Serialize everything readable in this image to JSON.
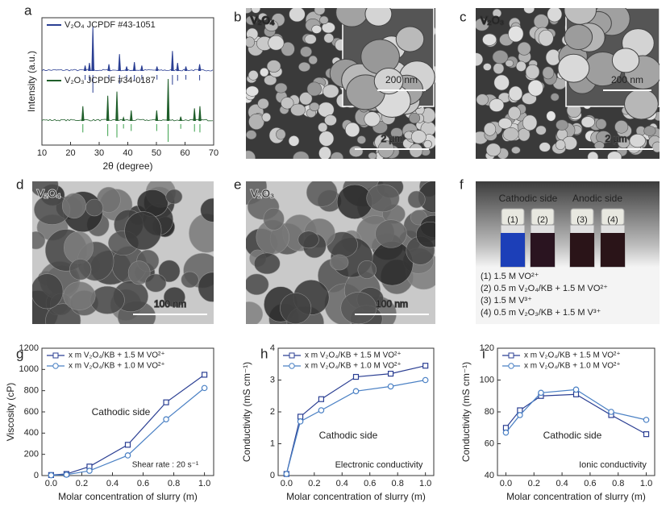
{
  "chart_data": [
    {
      "type": "xrd",
      "label": "a",
      "xlabel": "2θ (degree)",
      "ylabel": "Intensity (a.u.)",
      "xlim": [
        10,
        70
      ],
      "xticks": [
        10,
        20,
        30,
        40,
        50,
        60,
        70
      ],
      "series": [
        {
          "name": "V₂O₄ JCPDF #43-1051",
          "color": "#2b3f93",
          "x": [
            25.1,
            26.6,
            27.8,
            33.4,
            37.1,
            39.6,
            42.3,
            44.9,
            50.2,
            55.6,
            57.4,
            60.3,
            65.1
          ],
          "values": [
            12,
            18,
            100,
            15,
            38,
            10,
            20,
            12,
            10,
            45,
            18,
            10,
            15
          ]
        },
        {
          "name": "V₂O₃ JCPDF #34-0187",
          "color": "#1f5e2a",
          "x": [
            24.3,
            33.0,
            36.2,
            38.5,
            41.2,
            50.1,
            54.1,
            58.5,
            63.3,
            65.2
          ],
          "values": [
            35,
            60,
            70,
            8,
            25,
            25,
            100,
            10,
            30,
            35
          ]
        }
      ]
    },
    {
      "type": "line",
      "label": "g",
      "xlabel": "Molar concentration of slurry (m)",
      "ylabel": "Viscosity (cP)",
      "x": [
        0,
        0.1,
        0.25,
        0.5,
        0.75,
        1.0
      ],
      "xlim": [
        -0.06,
        1.06
      ],
      "xticks": [
        {
          "value": 0,
          "label": "0.0"
        },
        0.2,
        0.4,
        0.6,
        0.8,
        {
          "value": 1,
          "label": "1.0"
        }
      ],
      "ylim": [
        0,
        1200
      ],
      "yticks": [
        0,
        200,
        400,
        600,
        800,
        1000,
        1200
      ],
      "series": [
        {
          "name": "x m V₂O₄/KB + 1.5 M VO²⁺",
          "color": "#2b3f93",
          "marker": "square",
          "values": [
            5,
            15,
            85,
            290,
            690,
            950
          ]
        },
        {
          "name": "x m V₂O₄/KB + 1.0 M VO²⁺",
          "color": "#4a80c4",
          "marker": "circle",
          "values": [
            3,
            8,
            45,
            190,
            530,
            825
          ]
        }
      ],
      "annotations": [
        "Cathodic side",
        "Shear rate : 20 s⁻¹"
      ]
    },
    {
      "type": "line",
      "label": "h",
      "xlabel": "Molar concentration of slurry (m)",
      "ylabel": "Conductivity (mS cm⁻¹)",
      "x": [
        0,
        0.1,
        0.25,
        0.5,
        0.75,
        1.0
      ],
      "xlim": [
        -0.06,
        1.06
      ],
      "xticks": [
        {
          "value": 0,
          "label": "0.0"
        },
        0.2,
        0.4,
        0.6,
        0.8,
        {
          "value": 1,
          "label": "1.0"
        }
      ],
      "ylim": [
        0,
        4
      ],
      "yticks": [
        0,
        1,
        2,
        3,
        4
      ],
      "series": [
        {
          "name": "x m V₂O₄/KB + 1.5 M VO²⁺",
          "color": "#2b3f93",
          "marker": "square",
          "values": [
            0.05,
            1.85,
            2.4,
            3.1,
            3.2,
            3.45
          ]
        },
        {
          "name": "x m V₂O₄/KB + 1.0 M VO²⁺",
          "color": "#4a80c4",
          "marker": "circle",
          "values": [
            0.05,
            1.7,
            2.05,
            2.65,
            2.8,
            3.0
          ]
        }
      ],
      "annotations": [
        "Cathodic side",
        "Electronic conductivity"
      ]
    },
    {
      "type": "line",
      "label": "i",
      "xlabel": "Molar concentration of slurry (m)",
      "ylabel": "Conductivity (mS cm⁻¹)",
      "x": [
        0,
        0.1,
        0.25,
        0.5,
        0.75,
        1.0
      ],
      "xlim": [
        -0.06,
        1.06
      ],
      "xticks": [
        {
          "value": 0,
          "label": "0.0"
        },
        0.2,
        0.4,
        0.6,
        0.8,
        {
          "value": 1,
          "label": "1.0"
        }
      ],
      "ylim": [
        40,
        120
      ],
      "yticks": [
        40,
        60,
        80,
        100,
        120
      ],
      "series": [
        {
          "name": "x m V₂O₄/KB + 1.5 M VO²⁺",
          "color": "#2b3f93",
          "marker": "square",
          "values": [
            70,
            81,
            90,
            91,
            78,
            66
          ]
        },
        {
          "name": "x m V₂O₄/KB + 1.0 M VO²⁺",
          "color": "#4a80c4",
          "marker": "circle",
          "values": [
            67,
            78,
            92,
            94,
            80,
            75
          ]
        }
      ],
      "annotations": [
        "Cathodic side",
        "Ionic conductivity"
      ]
    }
  ],
  "images": [
    {
      "label": "b",
      "kind": "sem",
      "sample": "V₂O₄",
      "inset_scale": "200 nm",
      "scale": "2 µm"
    },
    {
      "label": "c",
      "kind": "sem",
      "sample": "V₂O₃",
      "inset_scale": "200 nm",
      "scale": "2 µm"
    },
    {
      "label": "d",
      "kind": "tem",
      "sample": "V₂O₄",
      "scale": "100 nm"
    },
    {
      "label": "e",
      "kind": "tem",
      "sample": "V₂O₃",
      "scale": "100 nm"
    }
  ],
  "photo": {
    "label": "f",
    "headers": [
      "Cathodic side",
      "Anodic side"
    ],
    "header_colors": [
      "#2255aa",
      "#2a7a3a"
    ],
    "vials": [
      "(1)",
      "(2)",
      "(3)",
      "(4)"
    ],
    "legend": [
      "(1)  1.5 M VO²⁺",
      "(2)  0.5 m V₂O₄/KB + 1.5 M VO²⁺",
      "(3)  1.5 M V³⁺",
      "(4)  0.5 m V₂O₃/KB  + 1.5 M V³⁺"
    ],
    "legend_colors": [
      "#2255aa",
      "#2255aa",
      "#2a7a3a",
      "#222222"
    ]
  }
}
